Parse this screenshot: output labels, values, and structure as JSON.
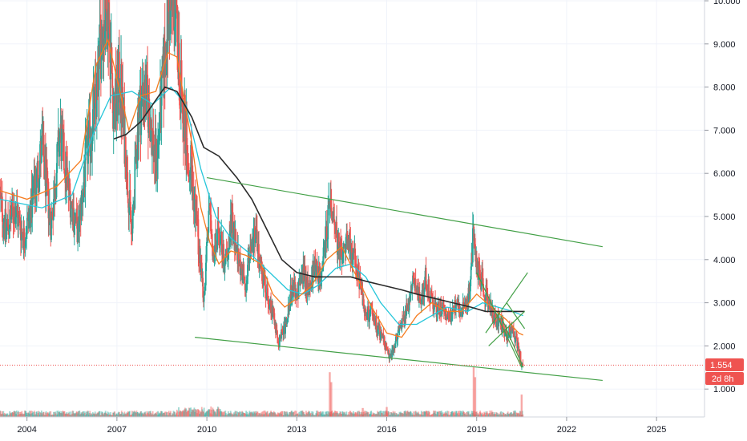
{
  "chart_data": {
    "type": "candlestick",
    "symbol_note": "weekly price chart with moving averages, volume and trend channel",
    "x_ticks": [
      "2004",
      "2007",
      "2010",
      "2013",
      "2016",
      "2019",
      "2022",
      "2025"
    ],
    "x_tick_years": [
      2004,
      2007,
      2010,
      2013,
      2016,
      2019,
      2022,
      2025
    ],
    "y_ticks": [
      "10.000",
      "9.000",
      "8.000",
      "7.000",
      "6.000",
      "5.000",
      "4.000",
      "3.000",
      "2.000",
      "1.000"
    ],
    "y_tick_values": [
      10,
      9,
      8,
      7,
      6,
      5,
      4,
      3,
      2,
      1
    ],
    "ylim": [
      0.6,
      10.05
    ],
    "xlim": [
      2003.1,
      2026.6
    ],
    "last_price": "1.554",
    "last_price_value": 1.554,
    "countdown": "2d 8h",
    "colors": {
      "up": "#26a69a",
      "down": "#ef5350",
      "ma_orange": "#f57c1f",
      "ma_teal": "#26c6da",
      "ma_black": "#2a2a2a",
      "trend": "#43a047",
      "price_line": "#ef5350"
    },
    "price_path": [
      [
        2003.1,
        5.4
      ],
      [
        2003.3,
        4.7
      ],
      [
        2003.6,
        5.2
      ],
      [
        2003.9,
        4.5
      ],
      [
        2004.2,
        5.4
      ],
      [
        2004.5,
        6.6
      ],
      [
        2004.8,
        4.8
      ],
      [
        2005.1,
        6.9
      ],
      [
        2005.4,
        5.6
      ],
      [
        2005.7,
        4.6
      ],
      [
        2006.0,
        6.5
      ],
      [
        2006.3,
        7.6
      ],
      [
        2006.5,
        9.4
      ],
      [
        2006.7,
        9.9
      ],
      [
        2006.9,
        7.4
      ],
      [
        2007.1,
        8.2
      ],
      [
        2007.3,
        6.4
      ],
      [
        2007.5,
        4.5
      ],
      [
        2007.7,
        7.3
      ],
      [
        2007.9,
        8.0
      ],
      [
        2008.1,
        7.3
      ],
      [
        2008.3,
        6.2
      ],
      [
        2008.5,
        7.8
      ],
      [
        2008.7,
        9.6
      ],
      [
        2008.9,
        10.0
      ],
      [
        2009.1,
        8.3
      ],
      [
        2009.3,
        6.9
      ],
      [
        2009.5,
        6.0
      ],
      [
        2009.7,
        4.6
      ],
      [
        2009.9,
        2.9
      ],
      [
        2010.1,
        5.6
      ],
      [
        2010.2,
        4.1
      ],
      [
        2010.4,
        4.7
      ],
      [
        2010.6,
        3.8
      ],
      [
        2010.8,
        4.9
      ],
      [
        2011.0,
        4.2
      ],
      [
        2011.3,
        3.5
      ],
      [
        2011.6,
        4.6
      ],
      [
        2011.9,
        3.5
      ],
      [
        2012.2,
        2.8
      ],
      [
        2012.4,
        2.1
      ],
      [
        2012.6,
        2.4
      ],
      [
        2012.8,
        3.3
      ],
      [
        2013.0,
        3.2
      ],
      [
        2013.2,
        3.7
      ],
      [
        2013.4,
        3.3
      ],
      [
        2013.6,
        3.9
      ],
      [
        2013.8,
        3.5
      ],
      [
        2014.0,
        4.6
      ],
      [
        2014.1,
        5.3
      ],
      [
        2014.3,
        4.6
      ],
      [
        2014.5,
        3.9
      ],
      [
        2014.7,
        4.4
      ],
      [
        2014.9,
        4.1
      ],
      [
        2015.1,
        3.4
      ],
      [
        2015.3,
        2.7
      ],
      [
        2015.5,
        2.8
      ],
      [
        2015.7,
        2.4
      ],
      [
        2015.9,
        2.1
      ],
      [
        2016.1,
        1.7
      ],
      [
        2016.3,
        2.1
      ],
      [
        2016.5,
        2.6
      ],
      [
        2016.7,
        2.9
      ],
      [
        2016.9,
        3.5
      ],
      [
        2017.1,
        3.0
      ],
      [
        2017.3,
        3.6
      ],
      [
        2017.5,
        3.0
      ],
      [
        2017.7,
        2.8
      ],
      [
        2017.9,
        2.9
      ],
      [
        2018.1,
        2.7
      ],
      [
        2018.3,
        2.9
      ],
      [
        2018.5,
        2.8
      ],
      [
        2018.7,
        3.0
      ],
      [
        2018.8,
        3.6
      ],
      [
        2018.9,
        4.8
      ],
      [
        2019.0,
        3.8
      ],
      [
        2019.2,
        3.4
      ],
      [
        2019.4,
        3.0
      ],
      [
        2019.6,
        2.6
      ],
      [
        2019.8,
        2.5
      ],
      [
        2020.0,
        2.2
      ],
      [
        2020.2,
        2.4
      ],
      [
        2020.4,
        1.9
      ],
      [
        2020.5,
        1.6
      ],
      [
        2020.55,
        1.554
      ]
    ],
    "ma_orange_path": [
      [
        2003.1,
        5.6
      ],
      [
        2004.0,
        5.4
      ],
      [
        2005.0,
        5.7
      ],
      [
        2005.8,
        6.3
      ],
      [
        2006.3,
        8.5
      ],
      [
        2006.7,
        9.1
      ],
      [
        2007.0,
        8.2
      ],
      [
        2007.4,
        7.0
      ],
      [
        2007.8,
        7.8
      ],
      [
        2008.3,
        7.9
      ],
      [
        2008.7,
        8.8
      ],
      [
        2009.0,
        8.7
      ],
      [
        2009.5,
        6.7
      ],
      [
        2009.8,
        5.2
      ],
      [
        2010.1,
        4.4
      ],
      [
        2010.4,
        3.9
      ],
      [
        2010.8,
        4.2
      ],
      [
        2011.3,
        4.1
      ],
      [
        2011.8,
        3.9
      ],
      [
        2012.2,
        3.2
      ],
      [
        2012.6,
        2.9
      ],
      [
        2013.0,
        3.1
      ],
      [
        2013.5,
        3.4
      ],
      [
        2014.0,
        4.0
      ],
      [
        2014.5,
        4.3
      ],
      [
        2015.0,
        3.6
      ],
      [
        2015.5,
        2.9
      ],
      [
        2016.0,
        2.3
      ],
      [
        2016.5,
        2.2
      ],
      [
        2017.0,
        2.7
      ],
      [
        2017.5,
        3.0
      ],
      [
        2018.0,
        2.8
      ],
      [
        2018.5,
        2.8
      ],
      [
        2019.0,
        3.2
      ],
      [
        2019.5,
        2.9
      ],
      [
        2020.0,
        2.6
      ],
      [
        2020.4,
        2.3
      ],
      [
        2020.55,
        2.25
      ]
    ],
    "ma_teal_path": [
      [
        2003.1,
        5.4
      ],
      [
        2004.5,
        5.2
      ],
      [
        2005.5,
        5.5
      ],
      [
        2006.2,
        6.9
      ],
      [
        2006.8,
        7.8
      ],
      [
        2007.5,
        7.9
      ],
      [
        2008.2,
        7.6
      ],
      [
        2008.8,
        8.0
      ],
      [
        2009.3,
        7.6
      ],
      [
        2009.8,
        6.1
      ],
      [
        2010.3,
        5.0
      ],
      [
        2010.8,
        4.5
      ],
      [
        2011.5,
        4.1
      ],
      [
        2012.1,
        3.7
      ],
      [
        2012.7,
        3.3
      ],
      [
        2013.2,
        3.2
      ],
      [
        2013.7,
        3.4
      ],
      [
        2014.3,
        3.8
      ],
      [
        2014.8,
        3.9
      ],
      [
        2015.3,
        3.6
      ],
      [
        2015.8,
        3.0
      ],
      [
        2016.4,
        2.5
      ],
      [
        2017.0,
        2.5
      ],
      [
        2017.5,
        2.7
      ],
      [
        2018.0,
        2.9
      ],
      [
        2018.7,
        2.8
      ],
      [
        2019.2,
        3.0
      ],
      [
        2019.7,
        2.9
      ],
      [
        2020.2,
        2.8
      ],
      [
        2020.55,
        2.7
      ]
    ],
    "ma_black_path": [
      [
        2006.9,
        6.8
      ],
      [
        2007.3,
        6.9
      ],
      [
        2007.8,
        7.2
      ],
      [
        2008.3,
        7.7
      ],
      [
        2008.6,
        8.0
      ],
      [
        2009.0,
        7.9
      ],
      [
        2009.5,
        7.3
      ],
      [
        2009.9,
        6.6
      ],
      [
        2010.4,
        6.4
      ],
      [
        2011.0,
        5.9
      ],
      [
        2011.5,
        5.4
      ],
      [
        2012.0,
        4.7
      ],
      [
        2012.5,
        4.0
      ],
      [
        2013.0,
        3.7
      ],
      [
        2013.6,
        3.6
      ],
      [
        2014.2,
        3.6
      ],
      [
        2014.8,
        3.6
      ],
      [
        2015.3,
        3.5
      ],
      [
        2015.9,
        3.4
      ],
      [
        2016.5,
        3.3
      ],
      [
        2017.0,
        3.2
      ],
      [
        2017.6,
        3.1
      ],
      [
        2018.2,
        3.0
      ],
      [
        2018.8,
        2.9
      ],
      [
        2019.3,
        2.8
      ],
      [
        2019.8,
        2.8
      ],
      [
        2020.3,
        2.8
      ],
      [
        2020.6,
        2.8
      ]
    ],
    "trendlines": [
      {
        "x1": 2010.0,
        "y1": 5.9,
        "x2": 2023.2,
        "y2": 4.3
      },
      {
        "x1": 2009.6,
        "y1": 2.2,
        "x2": 2023.2,
        "y2": 1.2
      },
      {
        "x1": 2019.0,
        "y1": 3.7,
        "x2": 2020.5,
        "y2": 1.5
      },
      {
        "x1": 2019.3,
        "y1": 2.3,
        "x2": 2020.7,
        "y2": 3.7
      },
      {
        "x1": 2019.4,
        "y1": 2.0,
        "x2": 2020.6,
        "y2": 2.8
      },
      {
        "x1": 2020.0,
        "y1": 3.0,
        "x2": 2020.6,
        "y2": 2.4
      },
      {
        "x1": 2019.8,
        "y1": 2.7,
        "x2": 2020.55,
        "y2": 1.5
      }
    ],
    "volume_spikes": [
      {
        "x": 2014.1,
        "v": 0.9
      },
      {
        "x": 2014.15,
        "v": 0.7
      },
      {
        "x": 2018.9,
        "v": 1.0
      },
      {
        "x": 2018.95,
        "v": 0.8
      },
      {
        "x": 2020.5,
        "v": 0.45
      },
      {
        "x": 2016.0,
        "v": 0.2
      },
      {
        "x": 2015.2,
        "v": 0.18
      }
    ]
  }
}
